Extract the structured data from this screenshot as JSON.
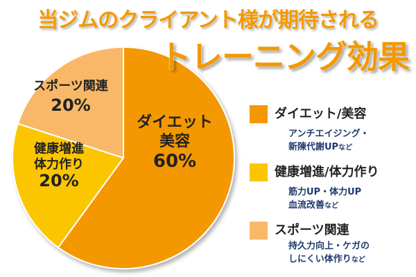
{
  "title_line1": "当ジムのクライアント様が期待される",
  "title_line2": "トレーニング効果",
  "colors": {
    "title": "#f39800",
    "slice_diet": "#f39800",
    "slice_health": "#fbc600",
    "slice_sports": "#f8b868",
    "desc_text": "#1e3a6e"
  },
  "chart_data": {
    "type": "pie",
    "title": "トレーニング効果",
    "categories": [
      "ダイエット/美容",
      "健康増進/体力作り",
      "スポーツ関連"
    ],
    "values": [
      60,
      20,
      20
    ],
    "slice_labels": [
      {
        "lines": [
          "ダイエット",
          "美容"
        ],
        "pct": "60%"
      },
      {
        "lines": [
          "健康増進",
          "体力作り"
        ],
        "pct": "20%"
      },
      {
        "lines": [
          "スポーツ関連"
        ],
        "pct": "20%"
      }
    ],
    "legend_position": "right"
  },
  "legend": [
    {
      "label": "ダイエット/美容",
      "desc1": "アンチエイジング・",
      "desc2": "新陳代謝UP",
      "suffix": "など"
    },
    {
      "label": "健康増進/体力作り",
      "desc1": "筋力UP・体力UP",
      "desc2": "血流改善",
      "suffix": "など"
    },
    {
      "label": "スポーツ関連",
      "desc1": "持久力向上・ケガの",
      "desc2": "しにくい体作り",
      "suffix": "など"
    }
  ]
}
